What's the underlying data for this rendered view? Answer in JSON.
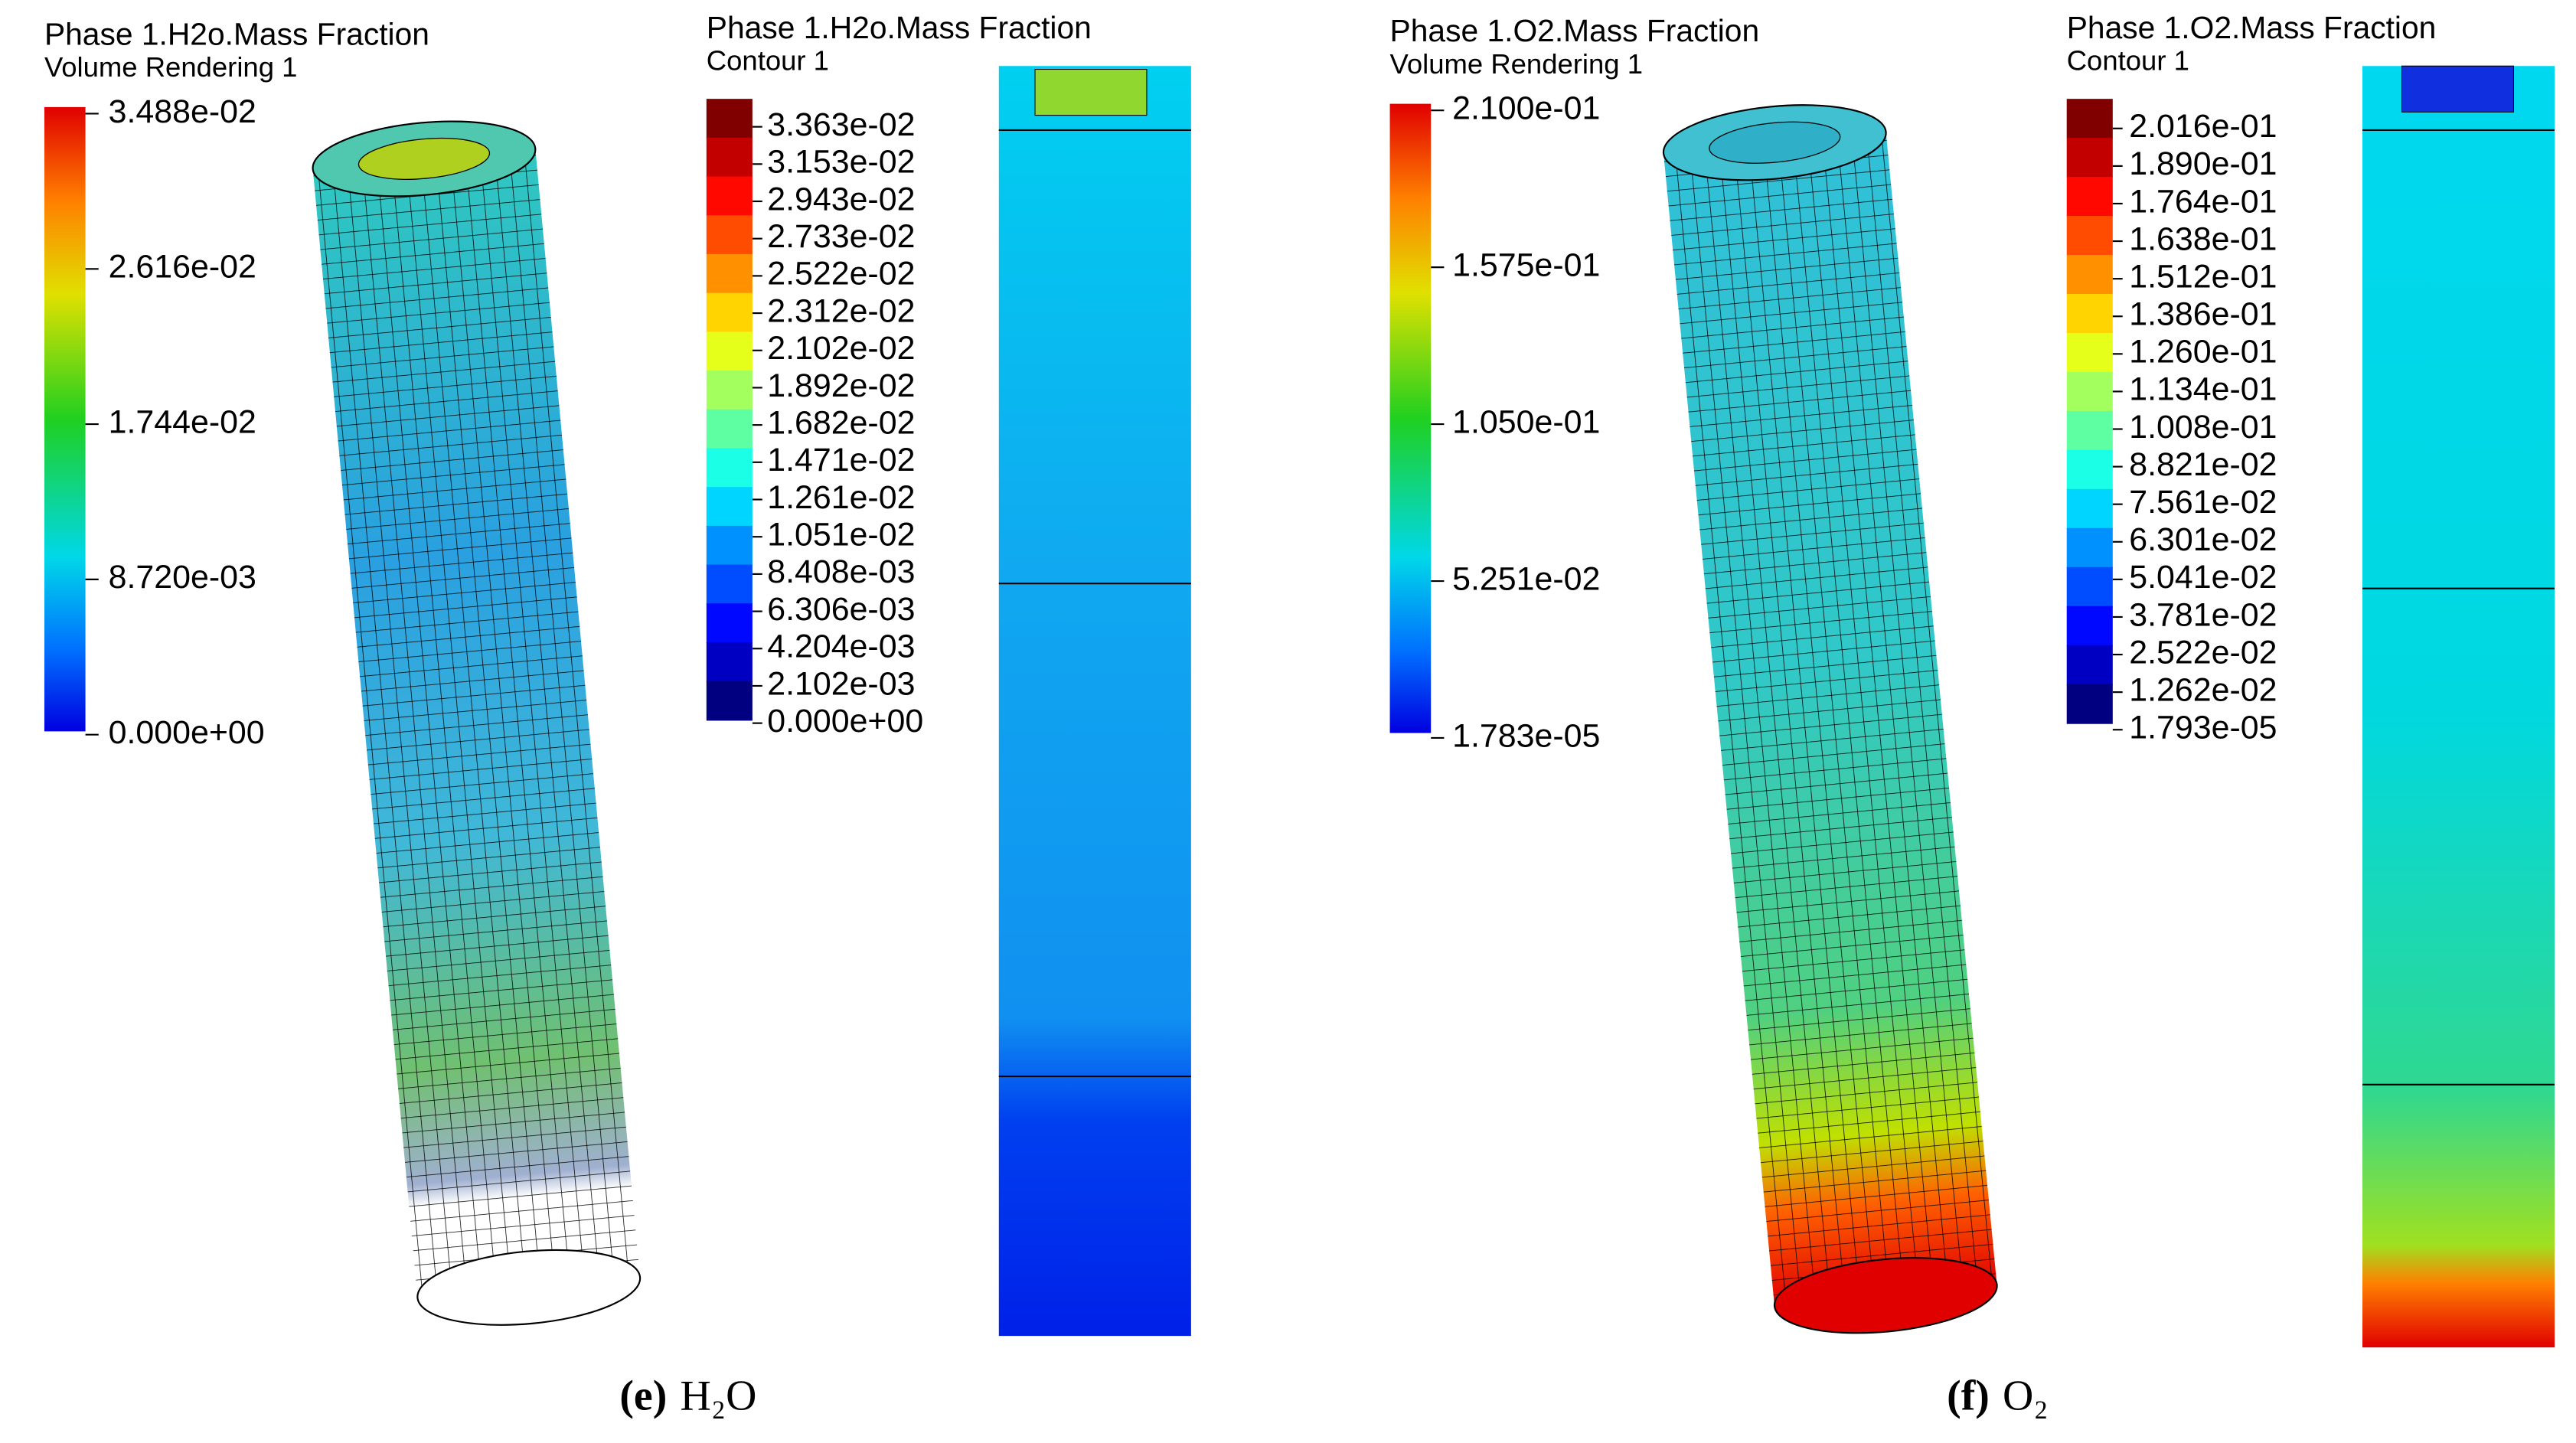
{
  "panels": [
    {
      "volume_legend": {
        "title": "Phase 1.H2o.Mass Fraction",
        "subtitle": "Volume Rendering 1",
        "labels": [
          "3.488e-02",
          "2.616e-02",
          "1.744e-02",
          "8.720e-03",
          "0.000e+00"
        ]
      },
      "contour_legend": {
        "title": "Phase 1.H2o.Mass Fraction",
        "subtitle": "Contour 1",
        "labels": [
          "3.363e-02",
          "3.153e-02",
          "2.943e-02",
          "2.733e-02",
          "2.522e-02",
          "2.312e-02",
          "2.102e-02",
          "1.892e-02",
          "1.682e-02",
          "1.471e-02",
          "1.261e-02",
          "1.051e-02",
          "8.408e-03",
          "6.306e-03",
          "4.204e-03",
          "2.102e-03",
          "0.000e+00"
        ]
      },
      "caption": {
        "label": "(e)",
        "text": "H₂O"
      }
    },
    {
      "volume_legend": {
        "title": "Phase 1.O2.Mass Fraction",
        "subtitle": "Volume Rendering 1",
        "labels": [
          "2.100e-01",
          "1.575e-01",
          "1.050e-01",
          "5.251e-02",
          "1.783e-05"
        ]
      },
      "contour_legend": {
        "title": "Phase 1.O2.Mass Fraction",
        "subtitle": "Contour 1",
        "labels": [
          "2.016e-01",
          "1.890e-01",
          "1.764e-01",
          "1.638e-01",
          "1.512e-01",
          "1.386e-01",
          "1.260e-01",
          "1.134e-01",
          "1.008e-01",
          "8.821e-02",
          "7.561e-02",
          "6.301e-02",
          "5.041e-02",
          "3.781e-02",
          "2.522e-02",
          "1.262e-02",
          "1.793e-05"
        ]
      },
      "caption": {
        "label": "(f)",
        "text": "O₂"
      }
    }
  ]
}
